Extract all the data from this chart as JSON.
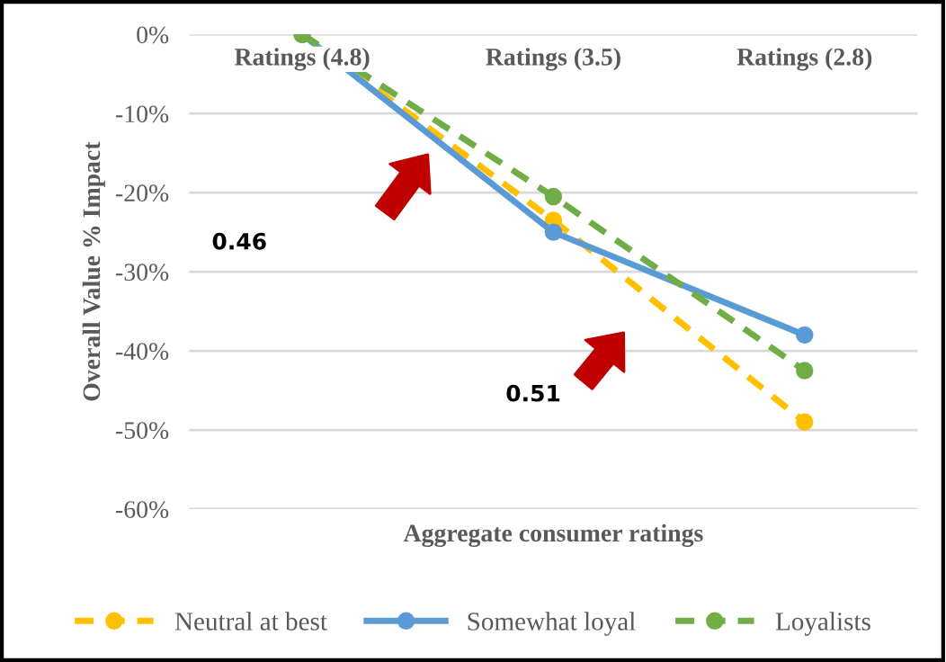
{
  "chart_data": {
    "type": "line",
    "xlabel": "Aggregate consumer ratings",
    "ylabel": "Overall Value % Impact",
    "categories": [
      "Ratings (4.8)",
      "Ratings (3.5)",
      "Ratings (2.8)"
    ],
    "series": [
      {
        "name": "Neutral at best",
        "color": "#ffc000",
        "values": [
          0,
          -23.5,
          -49
        ],
        "line_style": "dashed"
      },
      {
        "name": "Somewhat loyal",
        "color": "#5b9bd5",
        "values": [
          0,
          -25,
          -38
        ],
        "line_style": "solid"
      },
      {
        "name": "Loyalists",
        "color": "#70ad47",
        "values": [
          0,
          -20.5,
          -42.5
        ],
        "line_style": "dashed"
      }
    ],
    "ylim": [
      -60,
      0
    ],
    "yticks": [
      {
        "value": 0,
        "label": "0%"
      },
      {
        "value": -10,
        "label": "-10%"
      },
      {
        "value": -20,
        "label": "-20%"
      },
      {
        "value": -30,
        "label": "-30%"
      },
      {
        "value": -40,
        "label": "-40%"
      },
      {
        "value": -50,
        "label": "-50%"
      },
      {
        "value": -60,
        "label": "-60%"
      }
    ],
    "grid": "y",
    "legend": "bottom",
    "marker": "circle",
    "annotations": [
      "0.46",
      "0.51"
    ]
  }
}
